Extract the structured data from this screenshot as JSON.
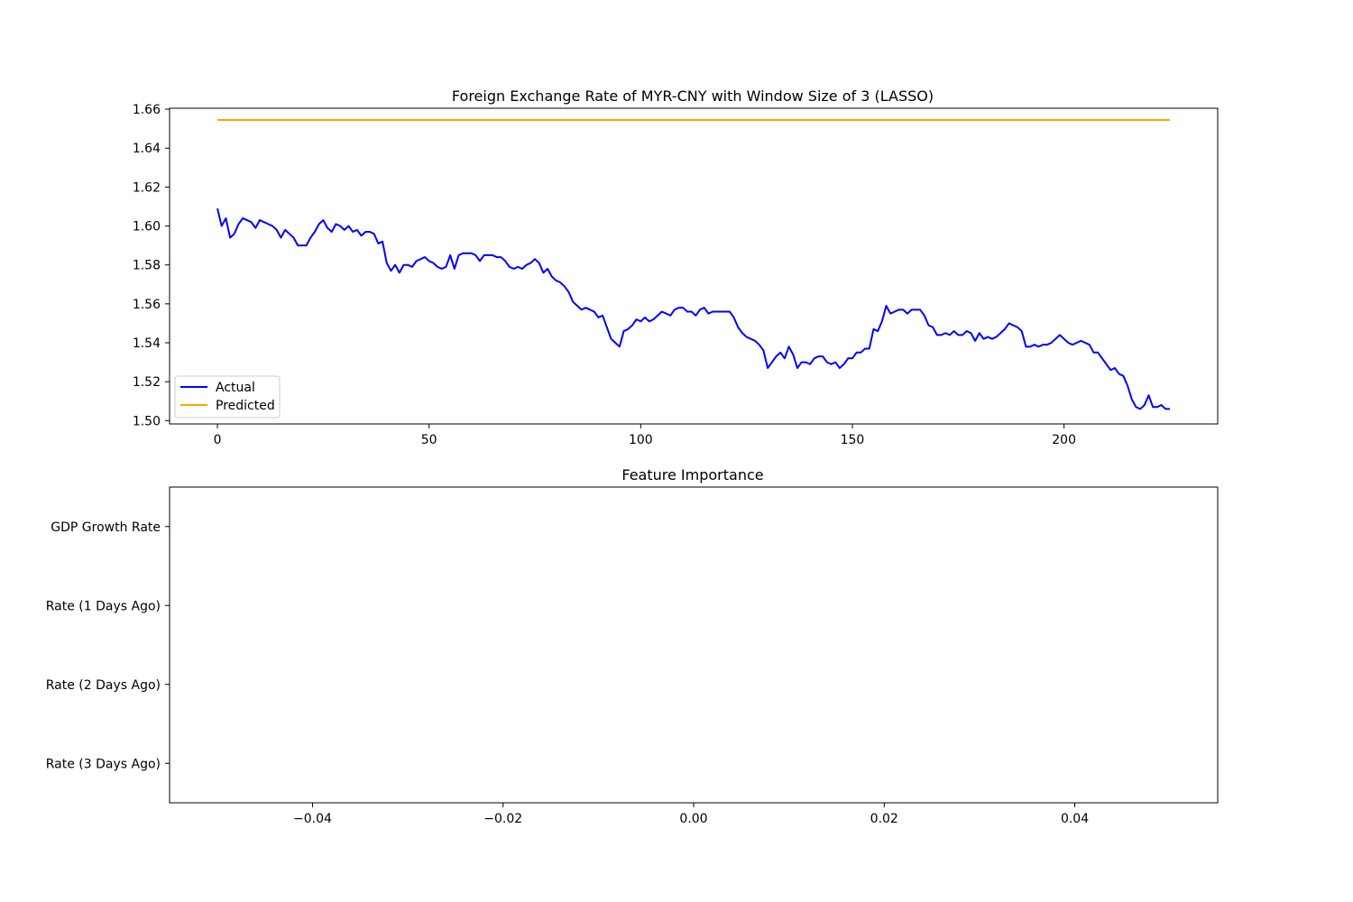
{
  "chart_data": [
    {
      "type": "line",
      "title": "Foreign Exchange Rate of MYR-CNY with Window Size of 3 (LASSO)",
      "xlabel": "",
      "ylabel": "",
      "xlim": [
        -11.3,
        236.3
      ],
      "ylim": [
        1.4983,
        1.6605
      ],
      "xticks": [
        0,
        50,
        100,
        150,
        200
      ],
      "xtick_labels": [
        "0",
        "50",
        "100",
        "150",
        "200"
      ],
      "yticks": [
        1.5,
        1.52,
        1.54,
        1.56,
        1.58,
        1.6,
        1.62,
        1.64,
        1.66
      ],
      "ytick_labels": [
        "1.50",
        "1.52",
        "1.54",
        "1.56",
        "1.58",
        "1.60",
        "1.62",
        "1.64",
        "1.66"
      ],
      "grid": false,
      "legend_position": "lower left",
      "series": [
        {
          "name": "Actual",
          "color": "#0000ff",
          "knots": [
            [
              0,
              1.609
            ],
            [
              1,
              1.6
            ],
            [
              2,
              1.604
            ],
            [
              3,
              1.594
            ],
            [
              4,
              1.596
            ],
            [
              5,
              1.601
            ],
            [
              6,
              1.604
            ],
            [
              7,
              1.603
            ],
            [
              8,
              1.602
            ],
            [
              9,
              1.599
            ],
            [
              10,
              1.603
            ],
            [
              12,
              1.601
            ],
            [
              13,
              1.6
            ],
            [
              14,
              1.598
            ],
            [
              15,
              1.594
            ],
            [
              16,
              1.598
            ],
            [
              17,
              1.596
            ],
            [
              18,
              1.594
            ],
            [
              19,
              1.59
            ],
            [
              20,
              1.59
            ],
            [
              21,
              1.59
            ],
            [
              22,
              1.594
            ],
            [
              23,
              1.597
            ],
            [
              24,
              1.601
            ],
            [
              25,
              1.603
            ],
            [
              26,
              1.599
            ],
            [
              27,
              1.597
            ],
            [
              28,
              1.601
            ],
            [
              29,
              1.6
            ],
            [
              30,
              1.598
            ],
            [
              31,
              1.6
            ],
            [
              32,
              1.597
            ],
            [
              33,
              1.598
            ],
            [
              34,
              1.595
            ],
            [
              35,
              1.597
            ],
            [
              36,
              1.597
            ],
            [
              37,
              1.596
            ],
            [
              38,
              1.591
            ],
            [
              39,
              1.592
            ],
            [
              40,
              1.581
            ],
            [
              41,
              1.577
            ],
            [
              42,
              1.58
            ],
            [
              43,
              1.576
            ],
            [
              44,
              1.58
            ],
            [
              45,
              1.58
            ],
            [
              46,
              1.579
            ],
            [
              47,
              1.582
            ],
            [
              48,
              1.583
            ],
            [
              49,
              1.584
            ],
            [
              50,
              1.582
            ],
            [
              51,
              1.581
            ],
            [
              52,
              1.579
            ],
            [
              53,
              1.578
            ],
            [
              54,
              1.579
            ],
            [
              55,
              1.585
            ],
            [
              56,
              1.578
            ],
            [
              57,
              1.585
            ],
            [
              58,
              1.586
            ],
            [
              59,
              1.586
            ],
            [
              60,
              1.586
            ],
            [
              61,
              1.585
            ],
            [
              62,
              1.582
            ],
            [
              63,
              1.585
            ],
            [
              64,
              1.585
            ],
            [
              65,
              1.585
            ],
            [
              66,
              1.584
            ],
            [
              67,
              1.584
            ],
            [
              68,
              1.582
            ],
            [
              69,
              1.579
            ],
            [
              70,
              1.578
            ],
            [
              71,
              1.579
            ],
            [
              72,
              1.578
            ],
            [
              73,
              1.58
            ],
            [
              74,
              1.581
            ],
            [
              75,
              1.583
            ],
            [
              76,
              1.581
            ],
            [
              77,
              1.576
            ],
            [
              78,
              1.578
            ],
            [
              79,
              1.574
            ],
            [
              80,
              1.572
            ],
            [
              81,
              1.571
            ],
            [
              82,
              1.569
            ],
            [
              83,
              1.566
            ],
            [
              84,
              1.561
            ],
            [
              85,
              1.559
            ],
            [
              86,
              1.557
            ],
            [
              87,
              1.558
            ],
            [
              88,
              1.557
            ],
            [
              89,
              1.556
            ],
            [
              90,
              1.553
            ],
            [
              91,
              1.554
            ],
            [
              92,
              1.548
            ],
            [
              93,
              1.542
            ],
            [
              94,
              1.54
            ],
            [
              95,
              1.538
            ],
            [
              96,
              1.546
            ],
            [
              97,
              1.547
            ],
            [
              98,
              1.549
            ],
            [
              99,
              1.552
            ],
            [
              100,
              1.551
            ],
            [
              101,
              1.553
            ],
            [
              102,
              1.551
            ],
            [
              103,
              1.552
            ],
            [
              104,
              1.554
            ],
            [
              105,
              1.556
            ],
            [
              106,
              1.555
            ],
            [
              107,
              1.554
            ],
            [
              108,
              1.557
            ],
            [
              109,
              1.558
            ],
            [
              110,
              1.558
            ],
            [
              111,
              1.556
            ],
            [
              112,
              1.556
            ],
            [
              113,
              1.554
            ],
            [
              114,
              1.557
            ],
            [
              115,
              1.558
            ],
            [
              116,
              1.555
            ],
            [
              117,
              1.556
            ],
            [
              118,
              1.556
            ],
            [
              119,
              1.556
            ],
            [
              120,
              1.556
            ],
            [
              121,
              1.556
            ],
            [
              122,
              1.553
            ],
            [
              123,
              1.548
            ],
            [
              124,
              1.545
            ],
            [
              125,
              1.543
            ],
            [
              126,
              1.542
            ],
            [
              127,
              1.541
            ],
            [
              128,
              1.539
            ],
            [
              129,
              1.536
            ],
            [
              130,
              1.527
            ],
            [
              131,
              1.53
            ],
            [
              132,
              1.533
            ],
            [
              133,
              1.535
            ],
            [
              134,
              1.532
            ],
            [
              135,
              1.538
            ],
            [
              136,
              1.534
            ],
            [
              137,
              1.527
            ],
            [
              138,
              1.53
            ],
            [
              139,
              1.53
            ],
            [
              140,
              1.529
            ],
            [
              141,
              1.532
            ],
            [
              142,
              1.533
            ],
            [
              143,
              1.533
            ],
            [
              144,
              1.53
            ],
            [
              145,
              1.529
            ],
            [
              146,
              1.53
            ],
            [
              147,
              1.527
            ],
            [
              148,
              1.529
            ],
            [
              149,
              1.532
            ],
            [
              150,
              1.532
            ],
            [
              151,
              1.535
            ],
            [
              152,
              1.535
            ],
            [
              153,
              1.537
            ],
            [
              154,
              1.537
            ],
            [
              155,
              1.547
            ],
            [
              156,
              1.546
            ],
            [
              157,
              1.551
            ],
            [
              158,
              1.559
            ],
            [
              159,
              1.555
            ],
            [
              160,
              1.556
            ],
            [
              161,
              1.557
            ],
            [
              162,
              1.557
            ],
            [
              163,
              1.555
            ],
            [
              164,
              1.557
            ],
            [
              165,
              1.557
            ],
            [
              166,
              1.557
            ],
            [
              167,
              1.554
            ],
            [
              168,
              1.549
            ],
            [
              169,
              1.548
            ],
            [
              170,
              1.544
            ],
            [
              171,
              1.544
            ],
            [
              172,
              1.545
            ],
            [
              173,
              1.544
            ],
            [
              174,
              1.546
            ],
            [
              175,
              1.544
            ],
            [
              176,
              1.544
            ],
            [
              177,
              1.546
            ],
            [
              178,
              1.545
            ],
            [
              179,
              1.541
            ],
            [
              180,
              1.545
            ],
            [
              181,
              1.542
            ],
            [
              182,
              1.543
            ],
            [
              183,
              1.542
            ],
            [
              184,
              1.543
            ],
            [
              185,
              1.545
            ],
            [
              186,
              1.547
            ],
            [
              187,
              1.55
            ],
            [
              188,
              1.549
            ],
            [
              189,
              1.548
            ],
            [
              190,
              1.546
            ],
            [
              191,
              1.538
            ],
            [
              192,
              1.538
            ],
            [
              193,
              1.539
            ],
            [
              194,
              1.538
            ],
            [
              195,
              1.539
            ],
            [
              196,
              1.539
            ],
            [
              197,
              1.54
            ],
            [
              198,
              1.542
            ],
            [
              199,
              1.544
            ],
            [
              200,
              1.542
            ],
            [
              201,
              1.54
            ],
            [
              202,
              1.539
            ],
            [
              203,
              1.54
            ],
            [
              204,
              1.541
            ],
            [
              205,
              1.54
            ],
            [
              206,
              1.539
            ],
            [
              207,
              1.535
            ],
            [
              208,
              1.535
            ],
            [
              209,
              1.532
            ],
            [
              210,
              1.529
            ],
            [
              211,
              1.526
            ],
            [
              212,
              1.527
            ],
            [
              213,
              1.524
            ],
            [
              214,
              1.523
            ],
            [
              215,
              1.518
            ],
            [
              216,
              1.511
            ],
            [
              217,
              1.507
            ],
            [
              218,
              1.506
            ],
            [
              219,
              1.508
            ],
            [
              220,
              1.513
            ],
            [
              221,
              1.507
            ],
            [
              222,
              1.507
            ],
            [
              223,
              1.508
            ],
            [
              224,
              1.506
            ],
            [
              225,
              1.506
            ]
          ]
        },
        {
          "name": "Predicted",
          "color": "#ffa500",
          "knots": [
            [
              0,
              1.6545
            ],
            [
              225,
              1.6545
            ]
          ]
        }
      ]
    },
    {
      "type": "bar",
      "orientation": "horizontal",
      "title": "Feature Importance",
      "xlabel": "",
      "ylabel": "",
      "categories": [
        "GDP Growth Rate",
        "Rate (1 Days Ago)",
        "Rate (2 Days Ago)",
        "Rate (3 Days Ago)"
      ],
      "values": [
        0,
        0,
        0,
        0
      ],
      "xlim": [
        -0.055,
        0.055
      ],
      "xticks": [
        -0.04,
        -0.02,
        0.0,
        0.02,
        0.04
      ],
      "xtick_labels": [
        "−0.04",
        "−0.02",
        "0.00",
        "0.02",
        "0.04"
      ],
      "grid": false
    }
  ]
}
